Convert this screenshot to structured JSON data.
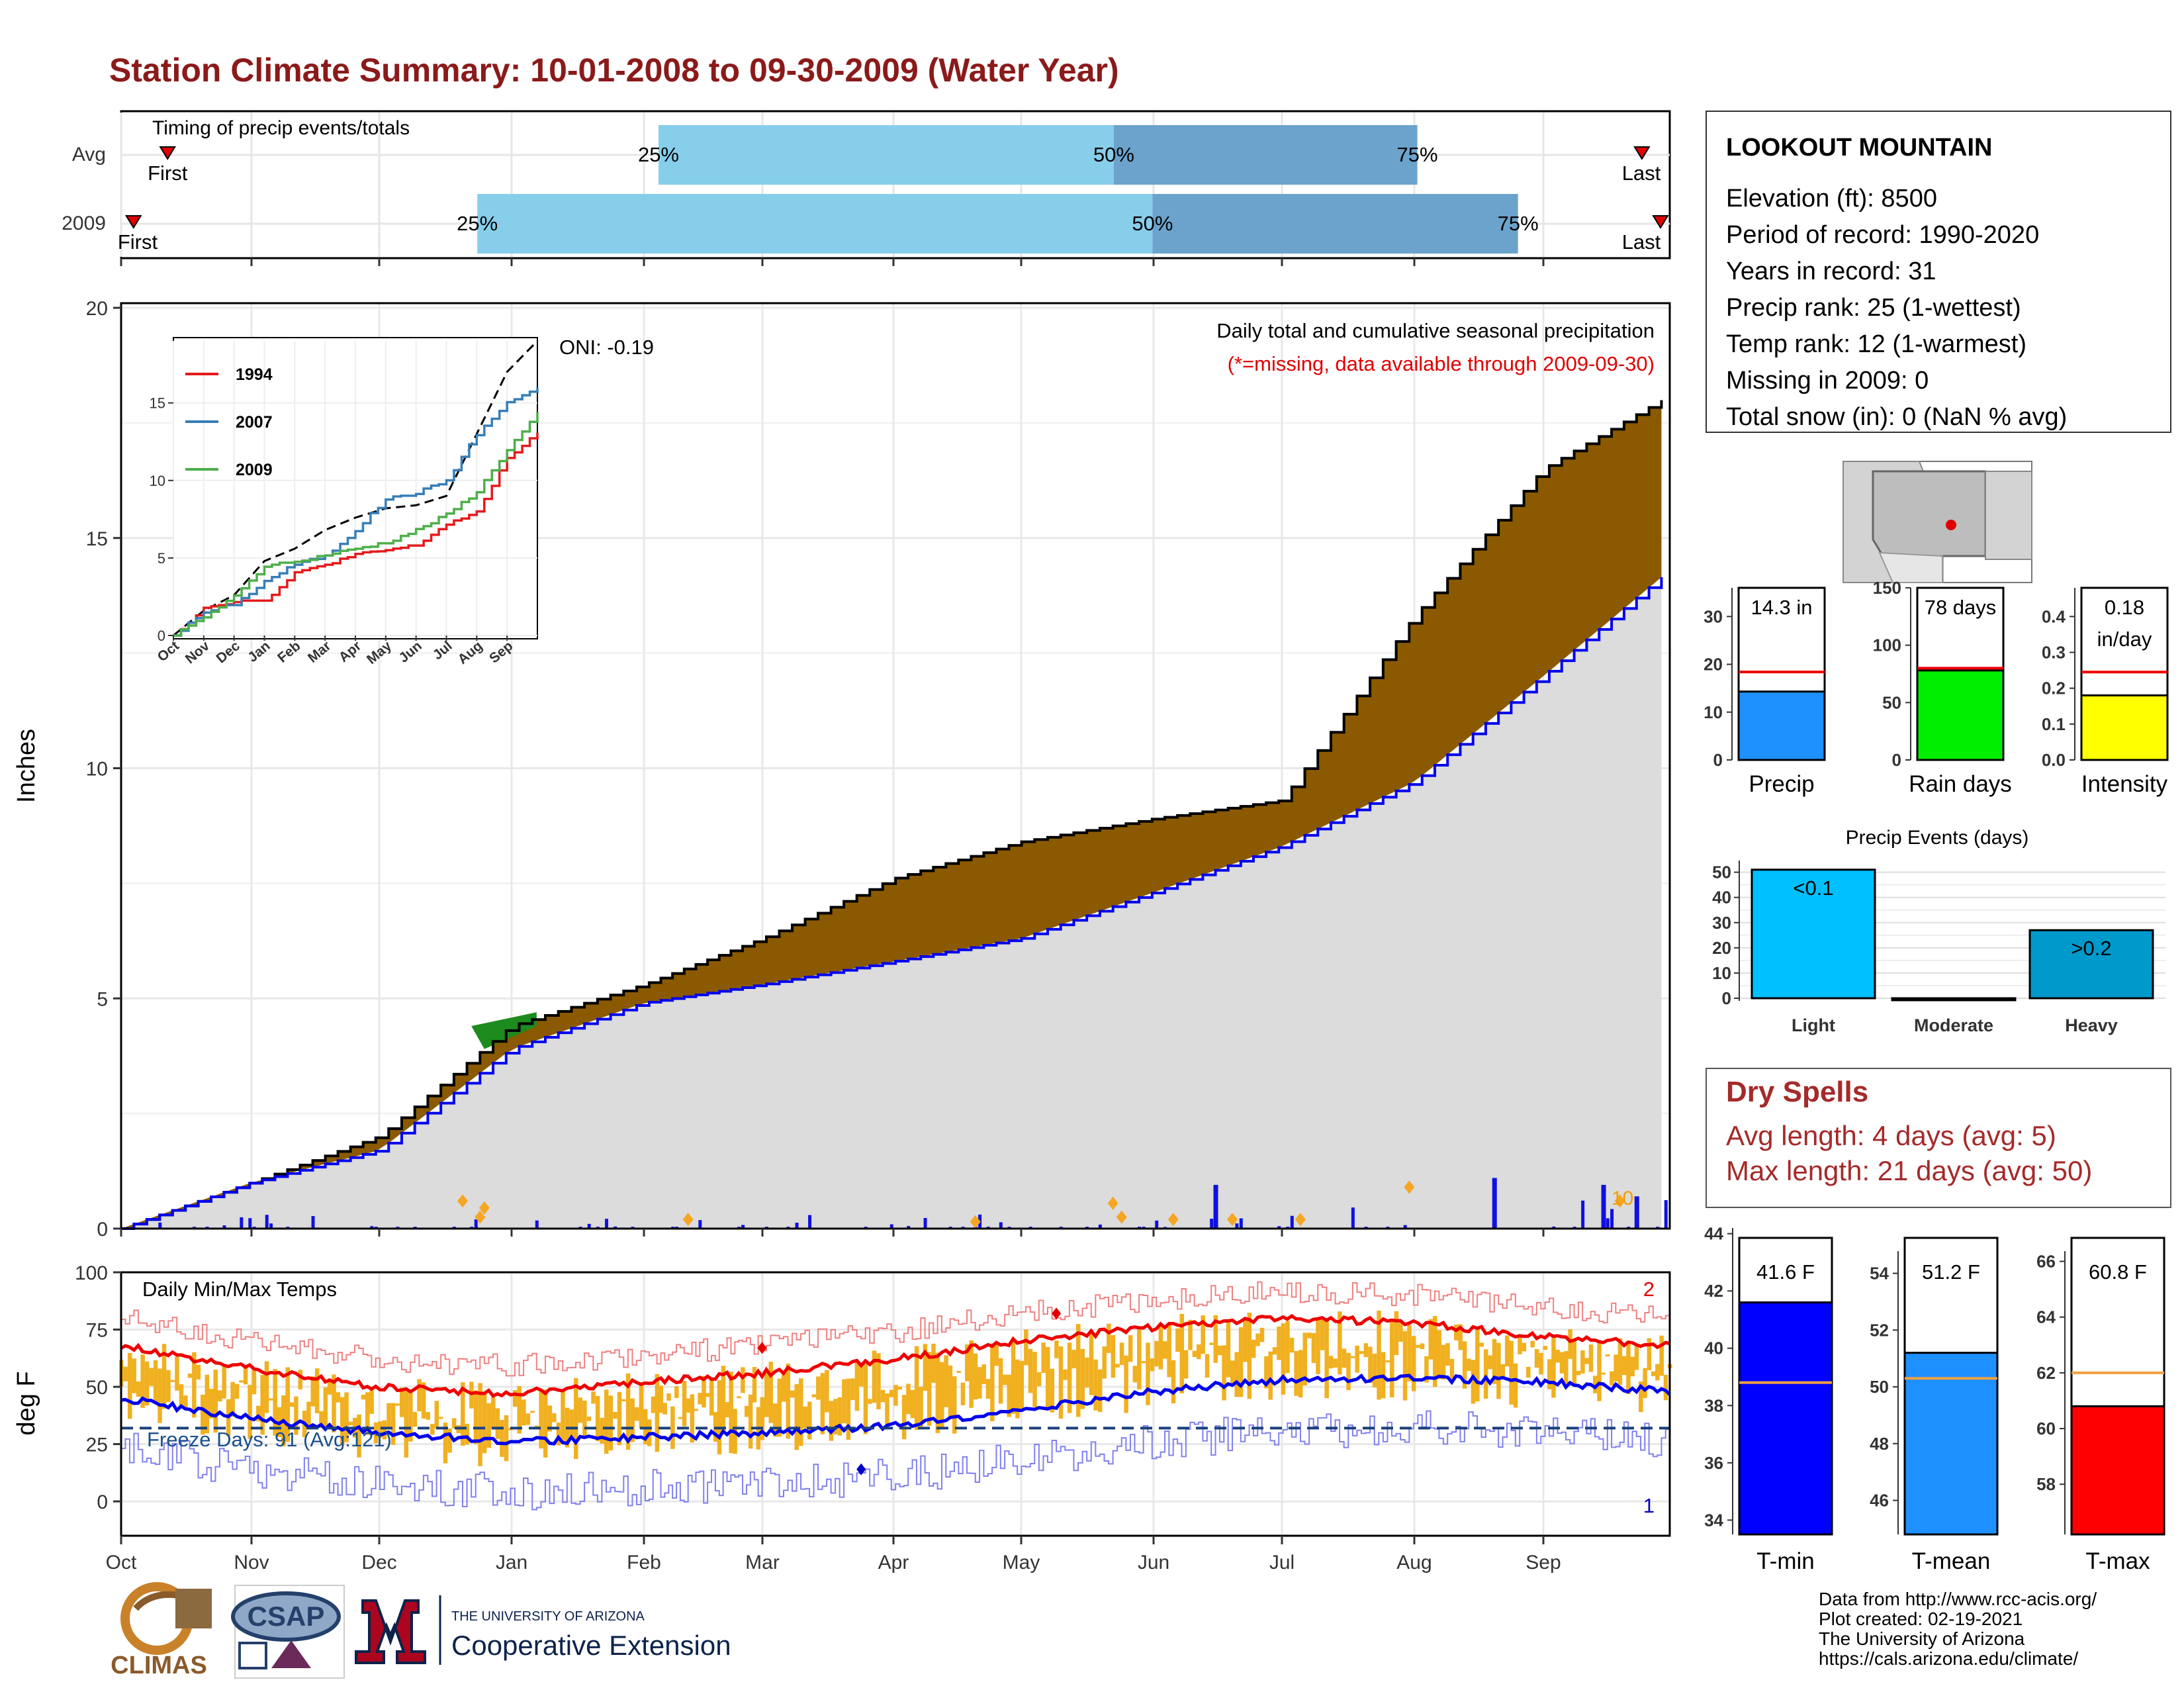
{
  "title": "Station Climate Summary: 10-01-2008 to 09-30-2009 (Water Year)",
  "colors": {
    "title": "#8B1A1A",
    "brown": "#8B5A00",
    "grey_fill": "#DCDCDC",
    "blue_line": "#0000EE",
    "green": "#1E8B1E",
    "light_blue": "#87CEEB",
    "mid_blue": "#6BA3CC",
    "gold": "#F0B020",
    "dry_red": "#A52A2A"
  },
  "timing": {
    "title": "Timing of precip events/totals",
    "rows": [
      {
        "label": "Avg",
        "first_label": "First",
        "last_label": "Last",
        "p25": "25%",
        "p50": "50%",
        "p75": "75%",
        "first": 0.03,
        "q25": 0.347,
        "q50": 0.641,
        "q75": 0.837,
        "last": 0.982
      },
      {
        "label": "2009",
        "first_label": "First",
        "last_label": "Last",
        "p25": "25%",
        "p50": "50%",
        "p75": "75%",
        "first": 0.008,
        "q25": 0.23,
        "q50": 0.666,
        "q75": 0.902,
        "last": 1.0
      }
    ]
  },
  "station": {
    "name": "LOOKOUT MOUNTAIN",
    "lines": [
      "Elevation (ft): 8500",
      "Period of record: 1990-2020",
      "Years in record: 31",
      "Precip rank: 25 (1-wettest)",
      "Temp rank: 12 (1-warmest)",
      "Missing in 2009: 0",
      "Total snow (in): 0 (NaN % avg)"
    ]
  },
  "precip_chart": {
    "ylabel": "Inches",
    "subtitle": "Daily total and cumulative seasonal precipitation",
    "missing_note": "(*=missing, data available through 2009-09-30)",
    "oni": "ONI: -0.19",
    "marker_label": "10",
    "ylim": [
      0,
      20
    ],
    "yticks": [
      "0",
      "5",
      "10",
      "15",
      "20"
    ]
  },
  "temp_chart": {
    "ylabel": "deg F",
    "title": "Daily Min/Max Temps",
    "freeze": "Freeze Days: 91 (Avg:121)",
    "max_label": "2",
    "min_label": "1",
    "ylim": [
      -15,
      100
    ],
    "yticks": [
      "0",
      "25",
      "50",
      "75",
      "100"
    ]
  },
  "months": [
    "Oct",
    "Nov",
    "Dec",
    "Jan",
    "Feb",
    "Mar",
    "Apr",
    "May",
    "Jun",
    "Jul",
    "Aug",
    "Sep"
  ],
  "inset": {
    "xticks": [
      "Oct",
      "Nov",
      "Dec",
      "Jan",
      "Feb",
      "Mar",
      "Apr",
      "May",
      "Jun",
      "Jul",
      "Aug",
      "Sep"
    ],
    "yticks": [
      "0",
      "5",
      "10",
      "15"
    ],
    "legend": [
      {
        "name": "1994",
        "color": "#E41A1C"
      },
      {
        "name": "2007",
        "color": "#377EB8"
      },
      {
        "name": "2009",
        "color": "#4DAF4A"
      }
    ]
  },
  "mini_bars": [
    {
      "label": "Precip",
      "value_text": "14.3 in",
      "value": 14.3,
      "avg": 18.4,
      "max": 36,
      "ticks": [
        "0",
        "10",
        "20",
        "30"
      ],
      "tickvals": [
        0,
        10,
        20,
        30
      ],
      "color": "#1E90FF"
    },
    {
      "label": "Rain days",
      "value_text": "78 days",
      "value": 78,
      "avg": 80,
      "max": 150,
      "ticks": [
        "0",
        "50",
        "100",
        "150"
      ],
      "tickvals": [
        0,
        50,
        100,
        150
      ],
      "color": "#00EE00"
    },
    {
      "label": "Intensity",
      "value_text": "0.18",
      "value_text2": "in/day",
      "value": 0.18,
      "avg": 0.245,
      "max": 0.48,
      "ticks": [
        "0.0",
        "0.1",
        "0.2",
        "0.3",
        "0.4"
      ],
      "tickvals": [
        0,
        0.1,
        0.2,
        0.3,
        0.4
      ],
      "color": "#FFFF00"
    }
  ],
  "precip_events": {
    "title": "Precip Events (days)",
    "categories": [
      "Light",
      "Moderate",
      "Heavy"
    ],
    "bar_labels": [
      "<0.1",
      "",
      ">0.2"
    ],
    "values": [
      51,
      0,
      27
    ],
    "yticks": [
      "0",
      "10",
      "20",
      "30",
      "40",
      "50"
    ],
    "colors": [
      "#00BFFF",
      "#1E90FF",
      "#0099CC"
    ]
  },
  "dry_spells": {
    "title": "Dry Spells",
    "avg": "Avg length: 4 days (avg: 5)",
    "max": "Max length: 21 days (avg: 50)"
  },
  "temp_bars": [
    {
      "label": "T-min",
      "value_text": "41.6 F",
      "value": 41.6,
      "avg": 38.8,
      "min": 33.5,
      "max": 44.2,
      "ticks": [
        "34",
        "36",
        "38",
        "40",
        "42",
        "44"
      ],
      "tickvals": [
        34,
        36,
        38,
        40,
        42,
        44
      ],
      "color": "#0000FF"
    },
    {
      "label": "T-mean",
      "value_text": "51.2 F",
      "value": 51.2,
      "avg": 50.3,
      "min": 44.8,
      "max": 55.6,
      "ticks": [
        "46",
        "48",
        "50",
        "52",
        "54"
      ],
      "tickvals": [
        46,
        48,
        50,
        52,
        54
      ],
      "color": "#1E90FF"
    },
    {
      "label": "T-max",
      "value_text": "60.8 F",
      "value": 60.8,
      "avg": 62.0,
      "min": 56.2,
      "max": 67.2,
      "ticks": [
        "58",
        "60",
        "62",
        "64",
        "66"
      ],
      "tickvals": [
        58,
        60,
        62,
        64,
        66
      ],
      "color": "#FF0000"
    }
  ],
  "footer": {
    "logos": [
      "CLIMAS",
      "CSAP"
    ],
    "ua_small": "THE UNIVERSITY OF ARIZONA",
    "ua_big": "Cooperative Extension",
    "credits": [
      "Data from http://www.rcc-acis.org/",
      "Plot created: 02-19-2021",
      "The University of Arizona",
      "https://cals.arizona.edu/climate/"
    ]
  },
  "chart_data": [
    {
      "type": "area",
      "title": "Daily total and cumulative seasonal precipitation",
      "ylabel": "Inches",
      "x": [
        "Oct",
        "Nov",
        "Dec",
        "Jan",
        "Feb",
        "Mar",
        "Apr",
        "May",
        "Jun",
        "Jul",
        "Aug",
        "Sep",
        "Sep-30"
      ],
      "series": [
        {
          "values": [
            0,
            1.0,
            2.0,
            4.4,
            5.3,
            6.3,
            7.6,
            8.4,
            8.9,
            9.3,
            13.3,
            16.5,
            18.1
          ]
        },
        {
          "values": [
            0,
            1.0,
            1.7,
            3.9,
            4.9,
            5.3,
            5.8,
            6.3,
            7.3,
            8.3,
            9.7,
            12.0,
            14.3
          ]
        }
      ],
      "ylim": [
        0,
        20
      ]
    },
    {
      "type": "line",
      "title": "Daily Min/Max Temps",
      "ylabel": "deg F",
      "x": [
        "Oct",
        "Nov",
        "Dec",
        "Jan",
        "Feb",
        "Mar",
        "Apr",
        "May",
        "Jun",
        "Jul",
        "Aug",
        "Sep",
        "Sep-30"
      ],
      "series": [
        {
          "values": [
            68,
            58,
            50,
            47,
            52,
            56,
            62,
            70,
            76,
            80,
            78,
            72,
            68
          ]
        },
        {
          "values": [
            45,
            36,
            30,
            26,
            28,
            30,
            33,
            40,
            48,
            53,
            54,
            52,
            48
          ]
        }
      ],
      "ylim": [
        -15,
        100
      ]
    },
    {
      "type": "line",
      "x": [
        "Oct",
        "Nov",
        "Dec",
        "Jan",
        "Feb",
        "Mar",
        "Apr",
        "May",
        "Jun",
        "Jul",
        "Aug",
        "Sep",
        "Sep-30"
      ],
      "series": [
        {
          "name": "1994",
          "values": [
            0,
            1.8,
            2.2,
            2.2,
            4.0,
            4.6,
            5.2,
            5.5,
            5.8,
            7.2,
            7.9,
            11.5,
            13.0
          ]
        },
        {
          "name": "2007",
          "values": [
            0,
            1.5,
            2.0,
            3.5,
            4.6,
            5.1,
            6.8,
            8.8,
            9.2,
            10.0,
            13.0,
            15.0,
            16.0
          ]
        },
        {
          "name": "2009",
          "values": [
            0,
            1.2,
            2.5,
            4.5,
            4.7,
            5.2,
            5.6,
            6.0,
            6.8,
            7.8,
            9.3,
            12.0,
            14.3
          ]
        }
      ],
      "ylim": [
        0,
        19
      ]
    }
  ]
}
